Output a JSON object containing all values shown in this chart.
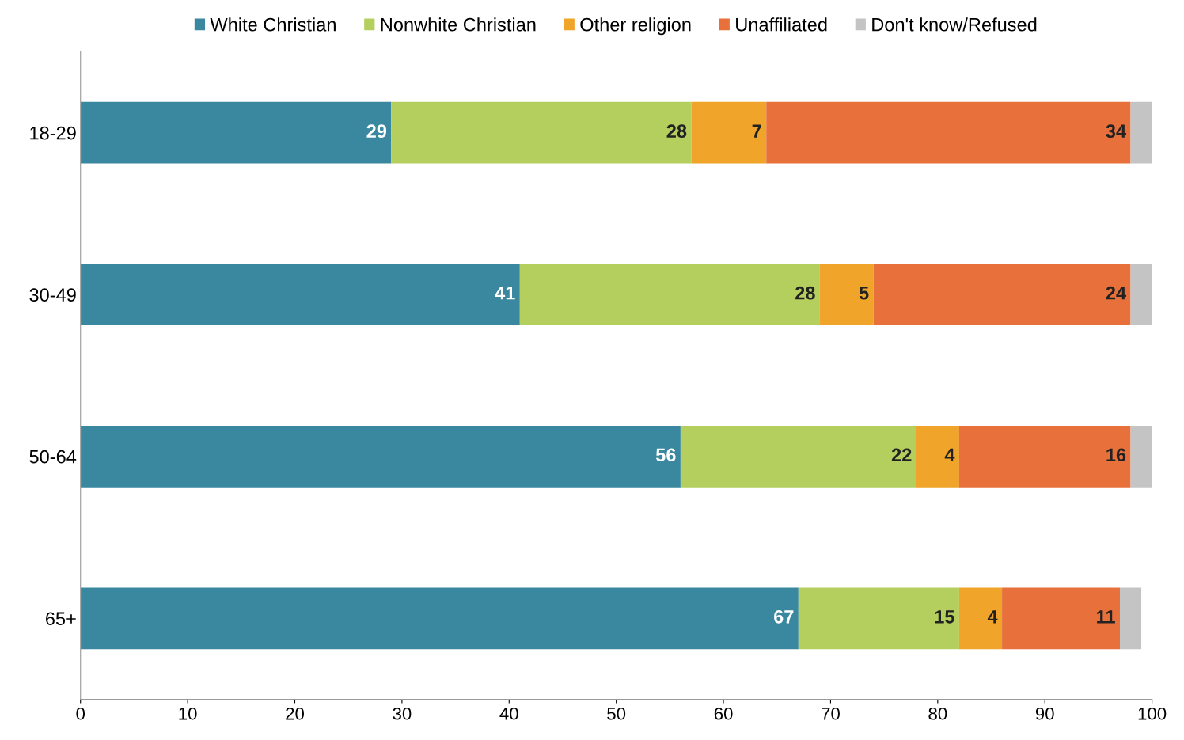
{
  "chart_data": {
    "type": "bar",
    "orientation": "horizontal",
    "stacked": true,
    "categories": [
      "18-29",
      "30-49",
      "50-64",
      "65+"
    ],
    "series": [
      {
        "name": "White Christian",
        "color": "#3a87a0",
        "values": [
          29,
          41,
          56,
          67
        ],
        "value_labels": [
          "29",
          "41",
          "56",
          "67"
        ]
      },
      {
        "name": "Nonwhite Christian",
        "color": "#b5cf5f",
        "values": [
          28,
          28,
          22,
          15
        ],
        "value_labels": [
          "28",
          "28",
          "22",
          "15"
        ]
      },
      {
        "name": "Other religion",
        "color": "#f0a429",
        "values": [
          7,
          5,
          4,
          4
        ],
        "value_labels": [
          "7",
          "5",
          "4",
          "4"
        ]
      },
      {
        "name": "Unaffiliated",
        "color": "#e8703a",
        "values": [
          34,
          24,
          16,
          11
        ],
        "value_labels": [
          "34",
          "24",
          "16",
          "11"
        ]
      },
      {
        "name": "Don't know/Refused",
        "color": "#c4c4c4",
        "values": [
          2,
          2,
          2,
          2
        ],
        "value_labels": [
          null,
          null,
          null,
          null
        ]
      }
    ],
    "xlim": [
      0,
      100
    ],
    "xticks": [
      0,
      10,
      20,
      30,
      40,
      50,
      60,
      70,
      80,
      90,
      100
    ],
    "grid": false,
    "legend": "top"
  }
}
